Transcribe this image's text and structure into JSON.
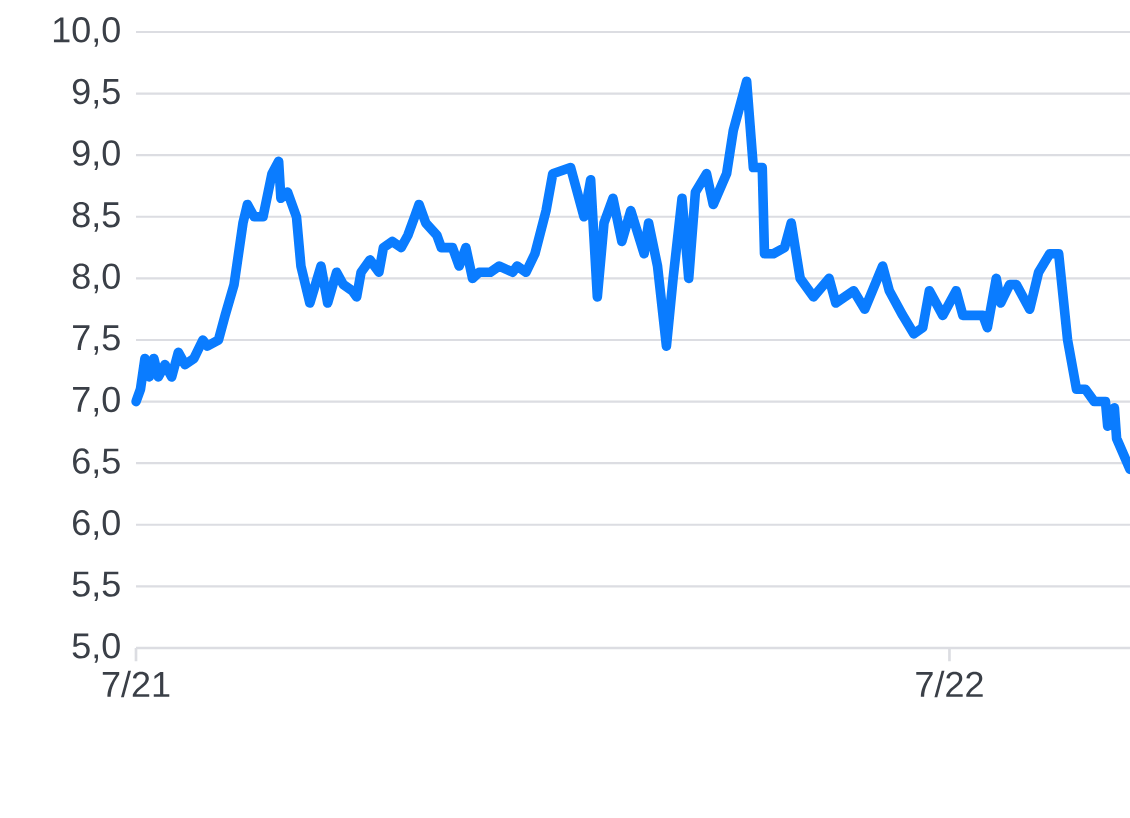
{
  "chart_data": {
    "type": "line",
    "x": [
      "2021-07-01",
      "2021-07-03",
      "2021-07-05",
      "2021-07-07",
      "2021-07-09",
      "2021-07-11",
      "2021-07-14",
      "2021-07-17",
      "2021-07-20",
      "2021-07-23",
      "2021-07-27",
      "2021-07-31",
      "2021-08-02",
      "2021-08-07",
      "2021-08-10",
      "2021-08-14",
      "2021-08-18",
      "2021-08-20",
      "2021-08-23",
      "2021-08-27",
      "2021-08-31",
      "2021-09-03",
      "2021-09-04",
      "2021-09-07",
      "2021-09-11",
      "2021-09-13",
      "2021-09-17",
      "2021-09-22",
      "2021-09-25",
      "2021-09-29",
      "2021-10-02",
      "2021-10-06",
      "2021-10-08",
      "2021-10-10",
      "2021-10-14",
      "2021-10-18",
      "2021-10-20",
      "2021-10-24",
      "2021-10-28",
      "2021-10-31",
      "2021-11-03",
      "2021-11-05",
      "2021-11-08",
      "2021-11-13",
      "2021-11-15",
      "2021-11-20",
      "2021-11-23",
      "2021-11-26",
      "2021-11-29",
      "2021-12-02",
      "2021-12-07",
      "2021-12-11",
      "2021-12-17",
      "2021-12-19",
      "2021-12-23",
      "2021-12-27",
      "2022-01-01",
      "2022-01-04",
      "2022-01-12",
      "2022-01-18",
      "2022-01-21",
      "2022-01-24",
      "2022-01-27",
      "2022-01-31",
      "2022-02-04",
      "2022-02-08",
      "2022-02-14",
      "2022-02-16",
      "2022-02-20",
      "2022-02-24",
      "2022-02-27",
      "2022-03-03",
      "2022-03-06",
      "2022-03-09",
      "2022-03-14",
      "2022-03-17",
      "2022-03-23",
      "2022-03-26",
      "2022-04-01",
      "2022-04-04",
      "2022-04-08",
      "2022-04-09",
      "2022-04-13",
      "2022-04-18",
      "2022-04-21",
      "2022-04-25",
      "2022-05-01",
      "2022-05-08",
      "2022-05-11",
      "2022-05-19",
      "2022-05-24",
      "2022-06-01",
      "2022-06-04",
      "2022-06-10",
      "2022-06-15",
      "2022-06-19",
      "2022-06-22",
      "2022-06-28",
      "2022-07-04",
      "2022-07-07",
      "2022-07-16",
      "2022-07-18",
      "2022-07-22",
      "2022-07-24",
      "2022-07-28",
      "2022-07-31",
      "2022-08-06",
      "2022-08-10",
      "2022-08-15",
      "2022-08-19",
      "2022-08-23",
      "2022-08-27",
      "2022-08-31",
      "2022-09-04",
      "2022-09-09",
      "2022-09-10",
      "2022-09-13",
      "2022-09-14",
      "2022-09-20"
    ],
    "series": [
      {
        "color": "#0a7cff",
        "values": [
          7.0,
          7.1,
          7.35,
          7.2,
          7.35,
          7.2,
          7.3,
          7.2,
          7.4,
          7.3,
          7.35,
          7.5,
          7.45,
          7.5,
          7.7,
          7.95,
          8.45,
          8.6,
          8.5,
          8.5,
          8.85,
          8.95,
          8.65,
          8.7,
          8.5,
          8.1,
          7.8,
          8.1,
          7.8,
          8.05,
          7.95,
          7.9,
          7.85,
          8.05,
          8.15,
          8.05,
          8.25,
          8.3,
          8.25,
          8.35,
          8.5,
          8.6,
          8.45,
          8.35,
          8.25,
          8.25,
          8.1,
          8.25,
          8.0,
          8.05,
          8.05,
          8.1,
          8.05,
          8.1,
          8.05,
          8.2,
          8.55,
          8.85,
          8.9,
          8.5,
          8.8,
          7.85,
          8.45,
          8.65,
          8.3,
          8.55,
          8.2,
          8.45,
          8.1,
          7.45,
          8.0,
          8.65,
          8.0,
          8.7,
          8.85,
          8.6,
          8.85,
          9.2,
          9.6,
          8.9,
          8.9,
          8.2,
          8.2,
          8.25,
          8.45,
          8.0,
          7.85,
          8.0,
          7.8,
          7.9,
          7.75,
          8.1,
          7.9,
          7.7,
          7.55,
          7.6,
          7.9,
          7.7,
          7.9,
          7.7,
          7.7,
          7.6,
          8.0,
          7.8,
          7.95,
          7.95,
          7.75,
          8.05,
          8.2,
          8.2,
          7.5,
          7.1,
          7.1,
          7.0,
          7.0,
          6.8,
          6.95,
          6.7,
          6.45
        ]
      }
    ],
    "xlim": [
      "2021-07-01",
      "2022-09-20"
    ],
    "xticks": [
      {
        "value": "2021-07-01",
        "label": "7/21"
      },
      {
        "value": "2022-07-01",
        "label": "7/22"
      }
    ],
    "ylim": [
      5.0,
      10.0
    ],
    "yticks": [
      {
        "value": 5.0,
        "label": "5,0"
      },
      {
        "value": 5.5,
        "label": "5,5"
      },
      {
        "value": 6.0,
        "label": "6,0"
      },
      {
        "value": 6.5,
        "label": "6,5"
      },
      {
        "value": 7.0,
        "label": "7,0"
      },
      {
        "value": 7.5,
        "label": "7,5"
      },
      {
        "value": 8.0,
        "label": "8,0"
      },
      {
        "value": 8.5,
        "label": "8,5"
      },
      {
        "value": 9.0,
        "label": "9,0"
      },
      {
        "value": 9.5,
        "label": "9,5"
      },
      {
        "value": 10.0,
        "label": "10,0"
      }
    ],
    "grid": "y",
    "line_style": "solid",
    "marker": "none"
  }
}
